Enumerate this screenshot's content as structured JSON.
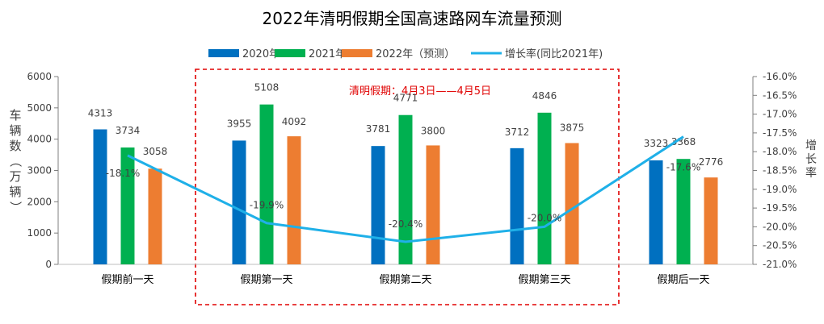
{
  "chart_data": {
    "type": "bar",
    "title": "2022年清明假期全国高速路网车流量预测",
    "categories": [
      "假期前一天",
      "假期第一天",
      "假期第二天",
      "假期第三天",
      "假期后一天"
    ],
    "series": [
      {
        "name": "2020年",
        "type": "bar",
        "axis": "left",
        "color": "#0070c0",
        "values": [
          4313,
          3955,
          3781,
          3712,
          3323
        ]
      },
      {
        "name": "2021年",
        "type": "bar",
        "axis": "left",
        "color": "#00b050",
        "values": [
          3734,
          5108,
          4771,
          4846,
          3368
        ]
      },
      {
        "name": "2022年（预测）",
        "type": "bar",
        "axis": "left",
        "color": "#ed7d31",
        "values": [
          3058,
          4092,
          3800,
          3875,
          2776
        ]
      },
      {
        "name": "增长率(同比2021年)",
        "type": "line",
        "axis": "right",
        "color": "#1fb0e8",
        "values": [
          -18.1,
          -19.9,
          -20.4,
          -20.0,
          -17.6
        ],
        "labels": [
          "-18.1%",
          "-19.9%",
          "-20.4%",
          "-20.0%",
          "-17.6%"
        ]
      }
    ],
    "ylabel": "车辆数（万辆）",
    "ylim": [
      0,
      6000
    ],
    "yticks": [
      "0",
      "1000",
      "2000",
      "3000",
      "4000",
      "5000",
      "6000"
    ],
    "y2label": "增长率",
    "y2lim": [
      -21.0,
      -16.0
    ],
    "y2ticks": [
      "-16.0%",
      "-16.5%",
      "-17.0%",
      "-17.5%",
      "-18.0%",
      "-18.5%",
      "-19.0%",
      "-19.5%",
      "-20.0%",
      "-20.5%",
      "-21.0%"
    ],
    "annotation": "清明假期：4月3日——4月5日",
    "annotation_color": "#e00000",
    "grid": false,
    "legend_position": "top"
  }
}
